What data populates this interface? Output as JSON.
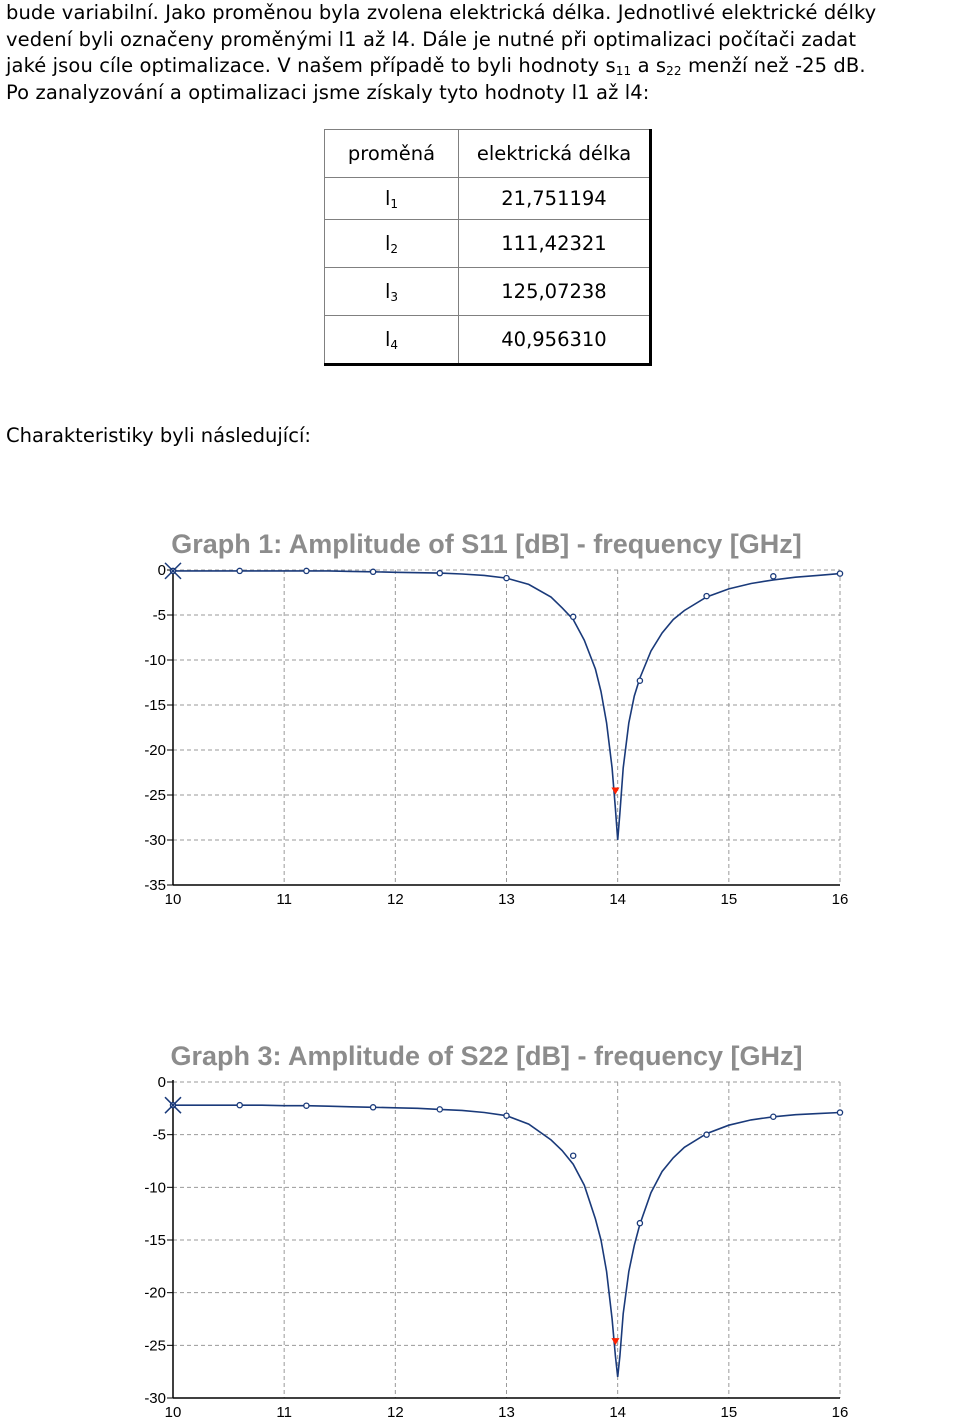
{
  "intro": {
    "line1": "bude variabilní. Jako proměnou byla zvolena elektrická délka. Jednotlivé elektrické délky",
    "line2": "vedení byli označeny proměnými l1 až l4. Dále je nutné při optimalizaci počítači zadat",
    "line3": "jaké jsou cíle optimalizace. V našem případě to byli hodnoty s",
    "s11_sub": "11",
    "and": " a s",
    "s22_sub": "22",
    "line3_end": " menží než -25 dB.",
    "line4": "Po zanalyzování a optimalizaci jsme získaly tyto hodnoty l1 až l4:"
  },
  "table": {
    "headers": [
      "proměná",
      "elektrická délka"
    ],
    "rows": [
      {
        "var": "l",
        "sub": "1",
        "value": "21,751194"
      },
      {
        "var": "l",
        "sub": "2",
        "value": "111,42321"
      },
      {
        "var": "l",
        "sub": "3",
        "value": "125,07238"
      },
      {
        "var": "l",
        "sub": "4",
        "value": "40,956310"
      }
    ]
  },
  "closing": "Charakteristiky byli následující:",
  "chart_data": [
    {
      "type": "line",
      "title": "Graph 1: Amplitude of S11 [dB] - frequency [GHz]",
      "xlim": [
        10,
        16
      ],
      "ylim": [
        -35,
        0
      ],
      "xticks": [
        "10",
        "11",
        "12",
        "13",
        "14",
        "15",
        "16"
      ],
      "yticks": [
        "0",
        "-5",
        "-10",
        "-15",
        "-20",
        "-25",
        "-30",
        "-35"
      ],
      "grid": true,
      "line_color": "#1a3a7a",
      "marker_color": "#ff2200",
      "series": [
        {
          "x": [
            10.0,
            10.2,
            10.4,
            10.6,
            10.8,
            11.0,
            11.2,
            11.4,
            11.6,
            11.8,
            12.0,
            12.2,
            12.4,
            12.6,
            12.8,
            13.0,
            13.2,
            13.4,
            13.5,
            13.6,
            13.7,
            13.8,
            13.85,
            13.9,
            13.95,
            13.98,
            14.0,
            14.02,
            14.05,
            14.1,
            14.15,
            14.2,
            14.3,
            14.4,
            14.5,
            14.6,
            14.8,
            15.0,
            15.2,
            15.4,
            15.6,
            15.8,
            16.0
          ],
          "y": [
            -0.1,
            -0.1,
            -0.1,
            -0.1,
            -0.1,
            -0.1,
            -0.1,
            -0.1,
            -0.15,
            -0.2,
            -0.25,
            -0.3,
            -0.35,
            -0.45,
            -0.6,
            -0.9,
            -1.6,
            -3.0,
            -4.2,
            -5.5,
            -7.8,
            -11.0,
            -13.5,
            -17.0,
            -22.0,
            -26.5,
            -30.0,
            -27.0,
            -22.0,
            -17.0,
            -14.0,
            -12.0,
            -9.0,
            -7.0,
            -5.5,
            -4.5,
            -3.0,
            -2.1,
            -1.5,
            -1.1,
            -0.8,
            -0.6,
            -0.4
          ]
        }
      ],
      "markers_x": [
        10.0,
        10.6,
        11.2,
        11.8,
        12.4,
        13.0,
        13.6,
        14.2,
        14.8,
        15.4,
        16.0
      ],
      "markers_y": [
        -0.1,
        -0.1,
        -0.1,
        -0.2,
        -0.35,
        -0.9,
        -5.2,
        -12.3,
        -2.9,
        -0.7,
        -0.4
      ],
      "red_marker": [
        13.98,
        -24.5
      ],
      "start_cross": [
        10.0,
        -0.1
      ]
    },
    {
      "type": "line",
      "title": "Graph 3: Amplitude of S22 [dB] - frequency [GHz]",
      "xlim": [
        10,
        16
      ],
      "ylim": [
        -30,
        0
      ],
      "xticks": [
        "10",
        "11",
        "12",
        "13",
        "14",
        "15",
        "16"
      ],
      "yticks": [
        "0",
        "-5",
        "-10",
        "-15",
        "-20",
        "-25",
        "-30"
      ],
      "grid": true,
      "line_color": "#1a3a7a",
      "marker_color": "#ff2200",
      "series": [
        {
          "x": [
            10.0,
            10.2,
            10.4,
            10.6,
            10.8,
            11.0,
            11.2,
            11.4,
            11.6,
            11.8,
            12.0,
            12.2,
            12.4,
            12.6,
            12.8,
            13.0,
            13.2,
            13.4,
            13.5,
            13.6,
            13.7,
            13.8,
            13.85,
            13.9,
            13.95,
            13.98,
            14.0,
            14.02,
            14.05,
            14.1,
            14.15,
            14.2,
            14.3,
            14.4,
            14.5,
            14.6,
            14.8,
            15.0,
            15.2,
            15.4,
            15.6,
            15.8,
            16.0
          ],
          "y": [
            -2.2,
            -2.2,
            -2.2,
            -2.2,
            -2.2,
            -2.25,
            -2.25,
            -2.3,
            -2.35,
            -2.4,
            -2.45,
            -2.5,
            -2.6,
            -2.7,
            -2.9,
            -3.2,
            -4.0,
            -5.5,
            -6.5,
            -7.8,
            -9.8,
            -13.0,
            -15.0,
            -18.0,
            -22.5,
            -26.0,
            -28.0,
            -26.0,
            -22.0,
            -18.0,
            -15.5,
            -13.5,
            -10.5,
            -8.5,
            -7.2,
            -6.2,
            -4.9,
            -4.1,
            -3.6,
            -3.3,
            -3.1,
            -3.0,
            -2.9
          ]
        }
      ],
      "markers_x": [
        10.0,
        10.6,
        11.2,
        11.8,
        12.4,
        13.0,
        13.6,
        14.2,
        14.8,
        15.4,
        16.0
      ],
      "markers_y": [
        -2.2,
        -2.2,
        -2.25,
        -2.4,
        -2.6,
        -3.2,
        -7.0,
        -13.4,
        -5.0,
        -3.3,
        -2.9
      ],
      "red_marker": [
        13.98,
        -24.6
      ],
      "start_cross": [
        10.0,
        -2.2
      ]
    }
  ]
}
